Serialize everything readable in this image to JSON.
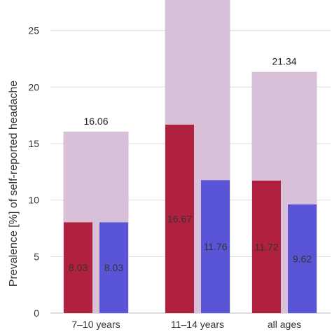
{
  "chart_data": {
    "type": "bar",
    "ylabel": "Prevalence [%] of self-reported headache",
    "ylim": [
      0,
      27.7
    ],
    "yticks": [
      0,
      5,
      10,
      15,
      20,
      25
    ],
    "grid": true,
    "categories": [
      "7–10 years",
      "11–14 years",
      "all ages"
    ],
    "total": {
      "values": [
        16.06,
        27.7,
        21.34
      ],
      "labels": [
        "16.06",
        "",
        "21.34"
      ],
      "color": "#d8c0d8"
    },
    "series": [
      {
        "values": [
          8.03,
          16.67,
          11.72
        ],
        "labels": [
          "8.03",
          "16.67",
          "11.72"
        ],
        "color": "#b0203f"
      },
      {
        "values": [
          8.03,
          11.76,
          9.62
        ],
        "labels": [
          "8.03",
          "11.76",
          "9.62"
        ],
        "color": "#5a55d6"
      }
    ]
  }
}
